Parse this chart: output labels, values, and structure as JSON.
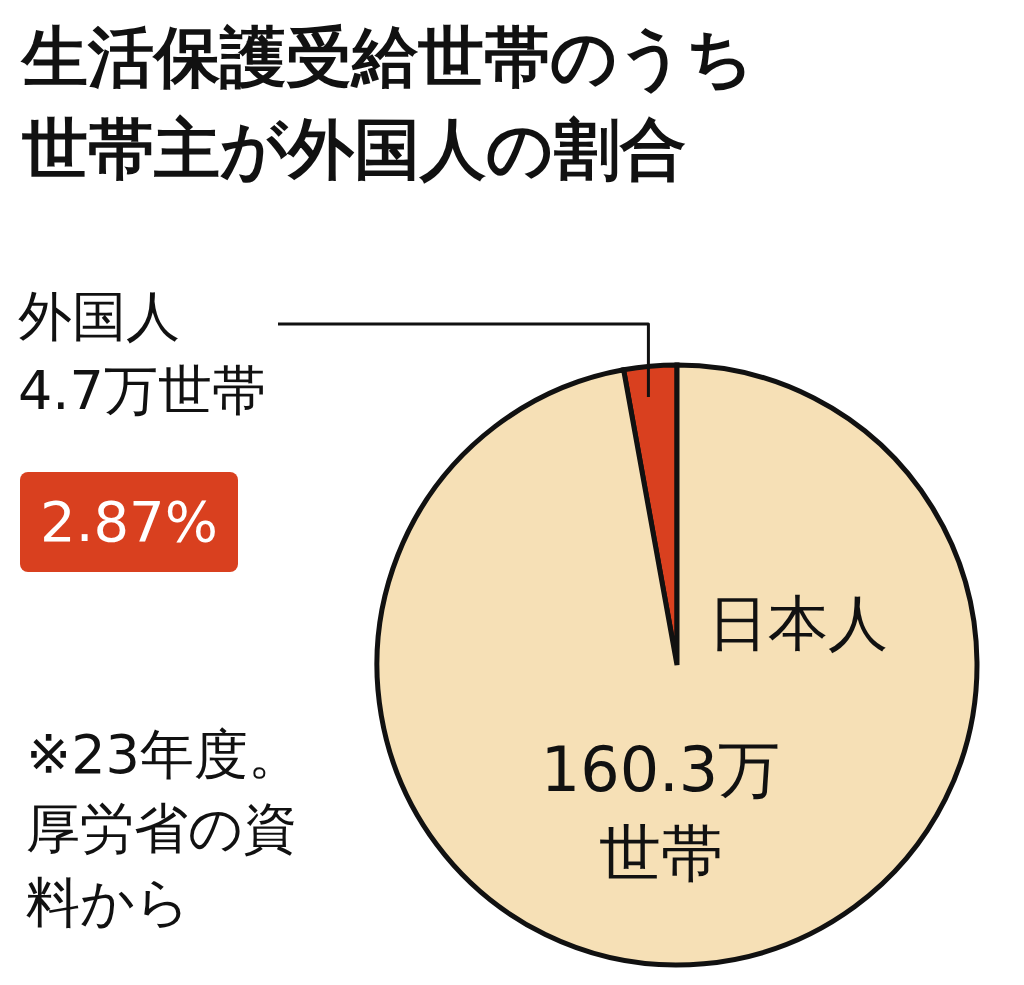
{
  "chart_data": {
    "type": "pie",
    "title": "生活保護受給世帯のうち世帯主が外国人の割合",
    "categories": [
      "外国人",
      "日本人"
    ],
    "values": [
      4.7,
      160.3
    ],
    "colors": [
      "#d9401f",
      "#f6e0b6"
    ],
    "value_labels": [
      "4.7万世帯",
      "160.3万世帯"
    ],
    "annotations": [
      "2.87%",
      "※23年度。厚労省の資料から"
    ]
  }
}
